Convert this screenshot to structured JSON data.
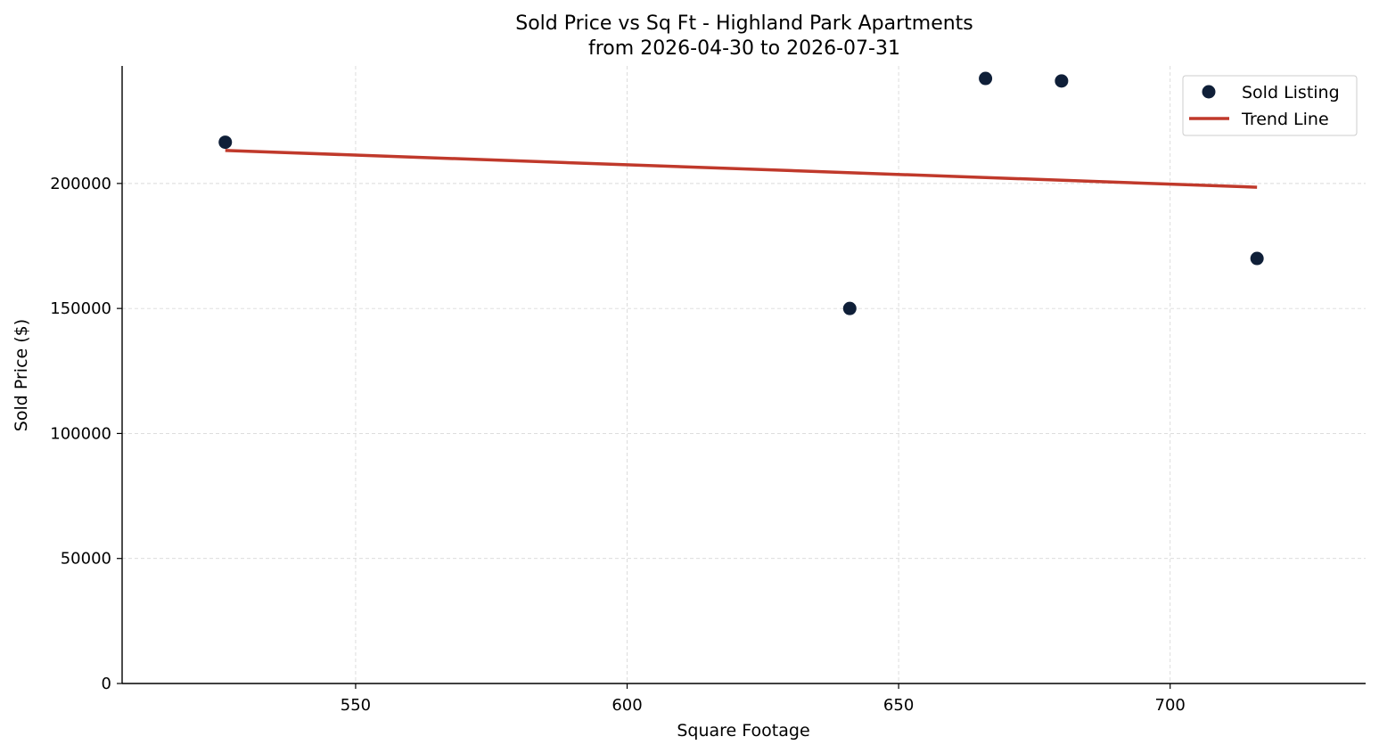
{
  "chart_data": {
    "type": "scatter",
    "title": "Sold Price vs Sq Ft - Highland Park Apartments",
    "subtitle": "from 2026-04-30 to 2026-07-31",
    "xlabel": "Square Footage",
    "ylabel": "Sold Price ($)",
    "xlim": [
      507,
      736
    ],
    "ylim": [
      0,
      247000
    ],
    "x_ticks": [
      550,
      600,
      650,
      700
    ],
    "y_ticks": [
      0,
      50000,
      100000,
      150000,
      200000
    ],
    "grid": true,
    "legend_position": "top-right",
    "series": [
      {
        "name": "Sold Listing",
        "kind": "scatter",
        "color": "#0f1f38",
        "points": [
          {
            "x": 526,
            "y": 216500
          },
          {
            "x": 641,
            "y": 150000
          },
          {
            "x": 666,
            "y": 242000
          },
          {
            "x": 680,
            "y": 241000
          },
          {
            "x": 716,
            "y": 170000
          }
        ]
      },
      {
        "name": "Trend Line",
        "kind": "line",
        "color": "#c0392b",
        "points": [
          {
            "x": 526,
            "y": 213200
          },
          {
            "x": 716,
            "y": 198500
          }
        ]
      }
    ]
  }
}
